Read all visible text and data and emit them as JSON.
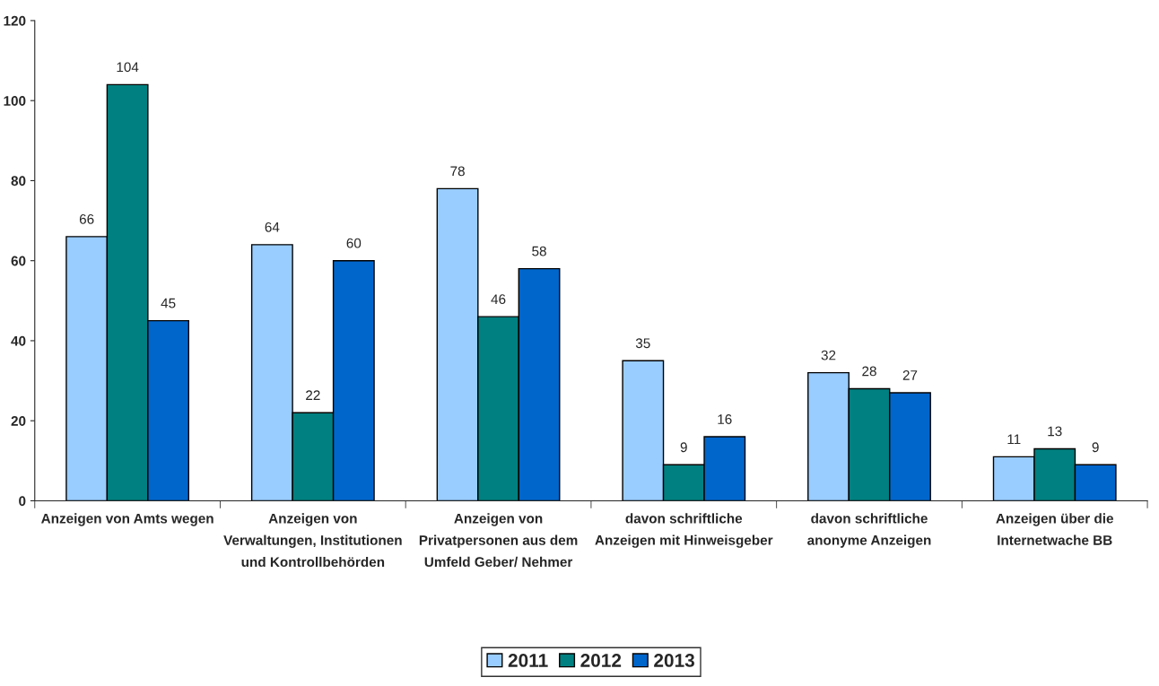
{
  "chart_data": {
    "type": "bar",
    "categories": [
      "Anzeigen von Amts wegen",
      "Anzeigen von\nVerwaltungen, Institutionen\nund Kontrollbehörden",
      "Anzeigen von\nPrivatpersonen aus dem\nUmfeld Geber/ Nehmer",
      "davon schriftliche\nAnzeigen mit Hinweisgeber",
      "davon schriftliche\nanonyme Anzeigen",
      "Anzeigen über die\nInternetwache BB"
    ],
    "series": [
      {
        "name": "2011",
        "color": "#99ccff",
        "values": [
          66,
          64,
          78,
          35,
          32,
          11
        ]
      },
      {
        "name": "2012",
        "color": "#008080",
        "values": [
          104,
          22,
          46,
          9,
          28,
          13
        ]
      },
      {
        "name": "2013",
        "color": "#0066cc",
        "values": [
          45,
          60,
          58,
          16,
          27,
          9
        ]
      }
    ],
    "ylim": [
      0,
      120
    ],
    "yticks": [
      0,
      20,
      40,
      60,
      80,
      100,
      120
    ],
    "data_labels": true,
    "grid": false,
    "legend": "bottom"
  }
}
